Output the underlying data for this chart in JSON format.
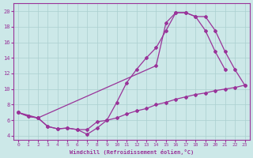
{
  "xlabel": "Windchill (Refroidissement éolien,°C)",
  "bg_color": "#cce8e8",
  "grid_color": "#aacfcf",
  "line_color": "#993399",
  "xlim": [
    -0.5,
    23.5
  ],
  "ylim": [
    3.5,
    21
  ],
  "xticks": [
    0,
    1,
    2,
    3,
    4,
    5,
    6,
    7,
    8,
    9,
    10,
    11,
    12,
    13,
    14,
    15,
    16,
    17,
    18,
    19,
    20,
    21,
    22,
    23
  ],
  "yticks": [
    4,
    6,
    8,
    10,
    12,
    14,
    16,
    18,
    20
  ],
  "line1_x": [
    0,
    1,
    2,
    3,
    4,
    5,
    6,
    7,
    8,
    9,
    10,
    11,
    12,
    13,
    14,
    15,
    16,
    17,
    18,
    19,
    20,
    21,
    22,
    23
  ],
  "line1_y": [
    7.0,
    6.5,
    6.3,
    5.2,
    4.9,
    5.0,
    4.8,
    4.8,
    5.8,
    6.0,
    6.3,
    6.8,
    7.2,
    7.5,
    8.0,
    8.3,
    8.7,
    9.0,
    9.3,
    9.5,
    9.8,
    10.0,
    10.2,
    10.5
  ],
  "line2_x": [
    0,
    1,
    2,
    3,
    4,
    5,
    6,
    7,
    8,
    9,
    10,
    11,
    12,
    13,
    14,
    15,
    16,
    17,
    18,
    19,
    20,
    21
  ],
  "line2_y": [
    7.0,
    6.5,
    6.3,
    5.2,
    4.9,
    5.0,
    4.8,
    4.2,
    5.0,
    6.0,
    8.3,
    10.8,
    12.5,
    14.0,
    15.3,
    17.5,
    19.8,
    19.8,
    19.3,
    17.5,
    14.8,
    12.5
  ],
  "line3_x": [
    0,
    2,
    14,
    15,
    16,
    17,
    18,
    19,
    20,
    21,
    22,
    23
  ],
  "line3_y": [
    7.0,
    6.3,
    13.0,
    18.5,
    19.8,
    19.8,
    19.3,
    19.3,
    17.5,
    14.8,
    12.5,
    10.5
  ]
}
